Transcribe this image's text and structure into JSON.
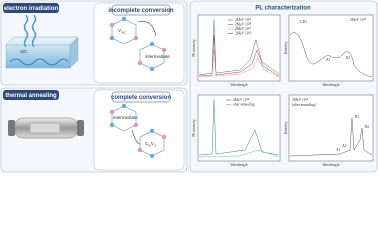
{
  "irradiation": {
    "title": "electron irradiation",
    "material": "SiC",
    "box_title": "incomplete conversion",
    "defect": "V",
    "defect_sub": "SiC",
    "intermediate": "intermediate"
  },
  "annealing": {
    "title": "thermal annealing",
    "box_title": "complete conversion",
    "intermediate": "intermediate",
    "defect": "C",
    "defect_sub": "Si",
    "defect_2": "V",
    "defect_2_sub": "C"
  },
  "pl": {
    "title": "PL characterization",
    "top_left": {
      "y_label": "PL intensity",
      "x_label": "Wavelength",
      "legend": [
        {
          "base": "2MeV 10",
          "exp": "15"
        },
        {
          "base": "2MeV 10",
          "exp": "16"
        },
        {
          "base": "2MeV 10",
          "exp": "17"
        },
        {
          "base": "2MeV 10",
          "exp": "18"
        }
      ]
    },
    "top_right": {
      "y_label": "Intensity",
      "x_label": "Wavelength",
      "legend_base": "2MeV 10",
      "legend_exp": "18",
      "peak": "UD1",
      "peak_a": "A1",
      "peak_b": "B1"
    },
    "bottom_left": {
      "y_label": "PL intensity",
      "x_label": "Wavelength",
      "legend": [
        {
          "base": "2MeV 10",
          "exp": "18"
        },
        {
          "base": "after annealing",
          "exp": ""
        }
      ]
    },
    "bottom_right": {
      "y_label": "Intensity",
      "x_label": "Wavelength",
      "legend_base": "2MeV 10",
      "legend_exp": "18",
      "legend_note": "(after annealing)",
      "peaks": [
        "A1",
        "A2",
        "B1",
        "B2"
      ]
    }
  }
}
